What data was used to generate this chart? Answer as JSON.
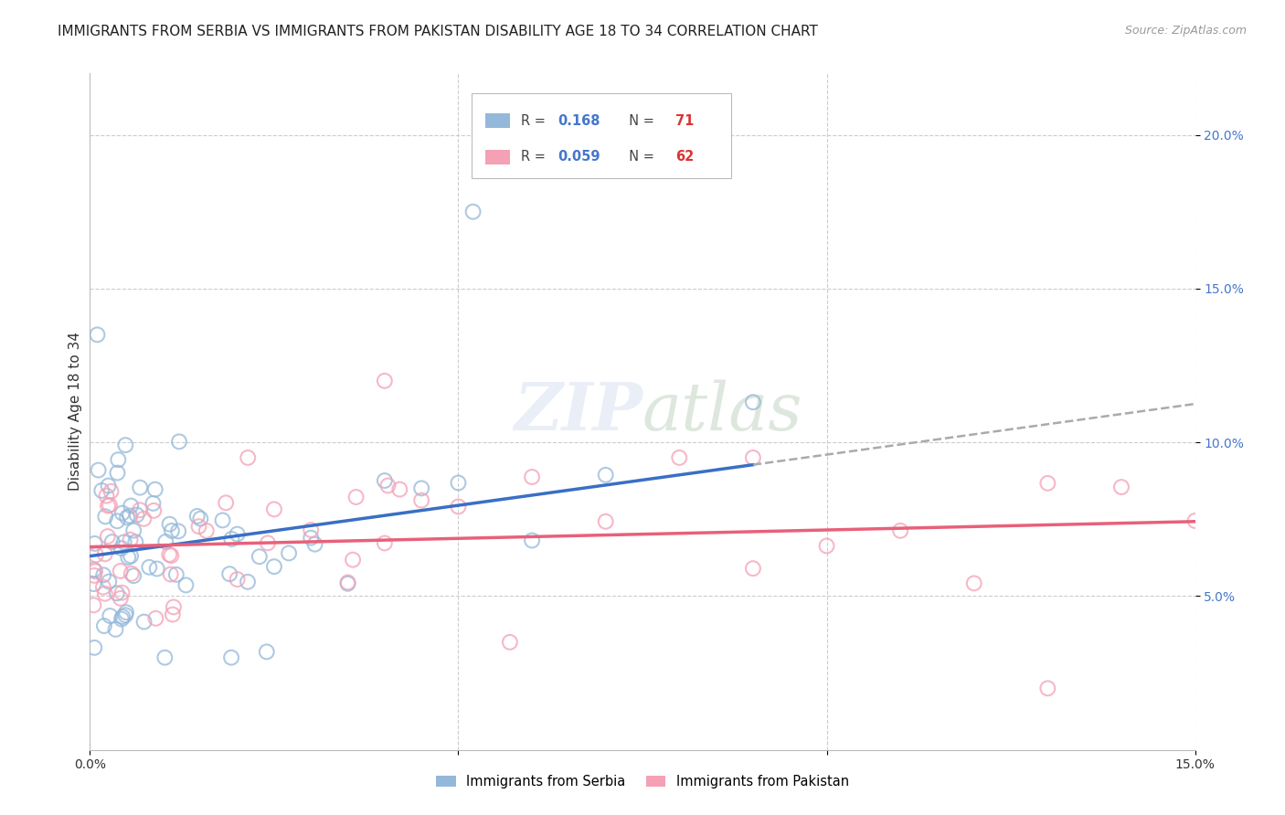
{
  "title": "IMMIGRANTS FROM SERBIA VS IMMIGRANTS FROM PAKISTAN DISABILITY AGE 18 TO 34 CORRELATION CHART",
  "source": "Source: ZipAtlas.com",
  "ylabel": "Disability Age 18 to 34",
  "xlim": [
    0.0,
    0.15
  ],
  "ylim": [
    0.0,
    0.22
  ],
  "y_ticks_right": [
    0.05,
    0.1,
    0.15,
    0.2
  ],
  "y_tick_labels_right": [
    "5.0%",
    "10.0%",
    "15.0%",
    "20.0%"
  ],
  "serbia_color": "#94B8D9",
  "pakistan_color": "#F4A0B5",
  "serbia_R": 0.168,
  "serbia_N": 71,
  "pakistan_R": 0.059,
  "pakistan_N": 62,
  "serbia_line_color": "#3A6FC4",
  "pakistan_line_color": "#E8607A",
  "serbia_line_intercept": 0.063,
  "serbia_line_slope": 0.33,
  "pakistan_line_intercept": 0.066,
  "pakistan_line_slope": 0.055,
  "dashed_line_color": "#AAAAAA",
  "watermark": "ZIPatlas",
  "title_fontsize": 11,
  "axis_label_fontsize": 11,
  "tick_fontsize": 10,
  "right_tick_color": "#4477CC"
}
